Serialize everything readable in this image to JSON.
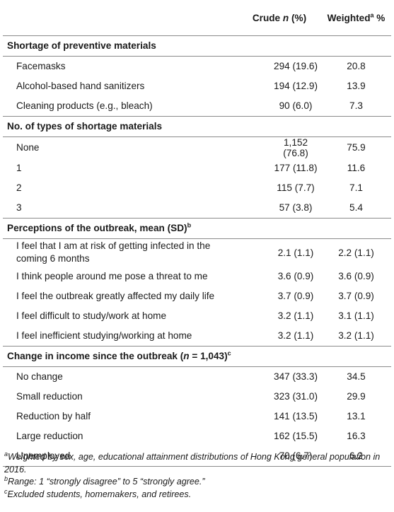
{
  "table": {
    "headers": {
      "crude_main": "Crude ",
      "crude_n": "n",
      "crude_pct": " (%)",
      "weighted_main": "Weighted",
      "weighted_sup": "a",
      "weighted_pct": " %"
    },
    "sections": [
      {
        "title": "Shortage of preventive materials",
        "rows": [
          {
            "label": "Facemasks",
            "crude": "294 (19.6)",
            "weighted": "20.8"
          },
          {
            "label": "Alcohol-based hand sanitizers",
            "crude": "194 (12.9)",
            "weighted": "13.9"
          },
          {
            "label": "Cleaning products (e.g., bleach)",
            "crude": "90 (6.0)",
            "weighted": "7.3"
          }
        ]
      },
      {
        "title": "No. of types of shortage materials",
        "rows": [
          {
            "label": "None",
            "crude": "1,152 (76.8)",
            "weighted": "75.9"
          },
          {
            "label": "1",
            "crude": "177 (11.8)",
            "weighted": "11.6"
          },
          {
            "label": "2",
            "crude": "115 (7.7)",
            "weighted": "7.1"
          },
          {
            "label": "3",
            "crude": "57 (3.8)",
            "weighted": "5.4"
          }
        ]
      },
      {
        "title": "Perceptions of the outbreak, mean (SD)",
        "title_sup": "b",
        "rows": [
          {
            "label": "I feel that I am at risk of getting infected in the coming 6 months",
            "crude": "2.1 (1.1)",
            "weighted": "2.2 (1.1)"
          },
          {
            "label": "I think people around me pose a threat to me",
            "crude": "3.6 (0.9)",
            "weighted": "3.6 (0.9)"
          },
          {
            "label": "I feel the outbreak greatly affected my daily life",
            "crude": "3.7 (0.9)",
            "weighted": "3.7 (0.9)"
          },
          {
            "label": "I feel difficult to study/work at home",
            "crude": "3.2 (1.1)",
            "weighted": "3.1 (1.1)"
          },
          {
            "label": "I feel inefficient studying/working at home",
            "crude": "3.2 (1.1)",
            "weighted": "3.2 (1.1)"
          }
        ]
      },
      {
        "title": "Change in income since the outbreak (",
        "title_n": "n",
        "title_rest": " = 1,043)",
        "title_sup": "c",
        "rows": [
          {
            "label": "No change",
            "crude": "347 (33.3)",
            "weighted": "34.5"
          },
          {
            "label": "Small reduction",
            "crude": "323 (31.0)",
            "weighted": "29.9"
          },
          {
            "label": "Reduction by half",
            "crude": "141 (13.5)",
            "weighted": "13.1"
          },
          {
            "label": "Large reduction",
            "crude": "162 (15.5)",
            "weighted": "16.3"
          },
          {
            "label": "Unemployed",
            "crude": "70 (6.7)",
            "weighted": "6.2"
          }
        ]
      }
    ]
  },
  "footnotes": [
    {
      "mark": "a",
      "text": "Weighted by sex, age, educational attainment distributions of Hong Kong general population in 2016."
    },
    {
      "mark": "b",
      "text": "Range: 1 “strongly disagree” to 5 “strongly agree.”"
    },
    {
      "mark": "c",
      "text": "Excluded students, homemakers, and retirees."
    }
  ]
}
